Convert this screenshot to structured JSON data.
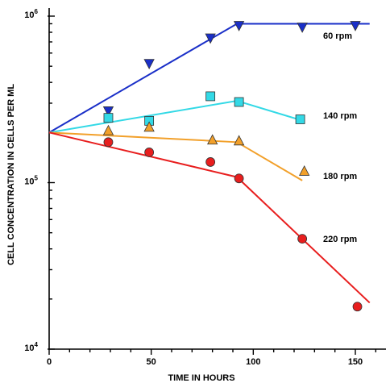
{
  "chart_data": {
    "type": "scatter",
    "xlabel": "TIME IN HOURS",
    "ylabel": "CELL CONCENTRATION IN CELLS PER ML",
    "xlim": [
      0,
      165
    ],
    "ylim": [
      10000,
      1000000
    ],
    "yscale": "log",
    "x_ticks": [
      0,
      50,
      100,
      150
    ],
    "x_tick_labels": [
      "0",
      "50",
      "100",
      "150"
    ],
    "y_ticks": [
      {
        "value": 10000,
        "base": "10",
        "exp": "4"
      },
      {
        "value": 100000,
        "base": "10",
        "exp": "5"
      },
      {
        "value": 1000000,
        "base": "10",
        "exp": "6"
      }
    ],
    "grid": false,
    "series": [
      {
        "name": "60 rpm",
        "color": "#1a2fc8",
        "marker": "triangle-down",
        "points": [
          [
            29,
            270000
          ],
          [
            49,
            520000
          ],
          [
            79,
            740000
          ],
          [
            93,
            880000
          ],
          [
            124,
            860000
          ],
          [
            150,
            880000
          ]
        ],
        "fit": [
          [
            0,
            200000
          ],
          [
            92,
            900000
          ],
          [
            157,
            900000
          ]
        ]
      },
      {
        "name": "140 rpm",
        "color": "#33d9e6",
        "marker": "square",
        "points": [
          [
            29,
            245000
          ],
          [
            49,
            235000
          ],
          [
            79,
            330000
          ],
          [
            93,
            305000
          ],
          [
            123,
            240000
          ]
        ],
        "fit": [
          [
            0,
            200000
          ],
          [
            92,
            310000
          ],
          [
            122,
            240000
          ]
        ]
      },
      {
        "name": "180 rpm",
        "color": "#f2a02a",
        "marker": "triangle-up",
        "points": [
          [
            29,
            205000
          ],
          [
            49,
            215000
          ],
          [
            80,
            180000
          ],
          [
            93,
            178000
          ],
          [
            125,
            117000
          ]
        ],
        "fit": [
          [
            0,
            200000
          ],
          [
            92,
            175000
          ],
          [
            124,
            103000
          ]
        ]
      },
      {
        "name": "220 rpm",
        "color": "#e81e1e",
        "marker": "circle",
        "points": [
          [
            29,
            175000
          ],
          [
            49,
            152000
          ],
          [
            79,
            133000
          ],
          [
            93,
            106000
          ],
          [
            124,
            46000
          ],
          [
            151,
            18000
          ]
        ],
        "fit": [
          [
            0,
            200000
          ],
          [
            92,
            108000
          ],
          [
            157,
            19000
          ]
        ]
      }
    ]
  }
}
